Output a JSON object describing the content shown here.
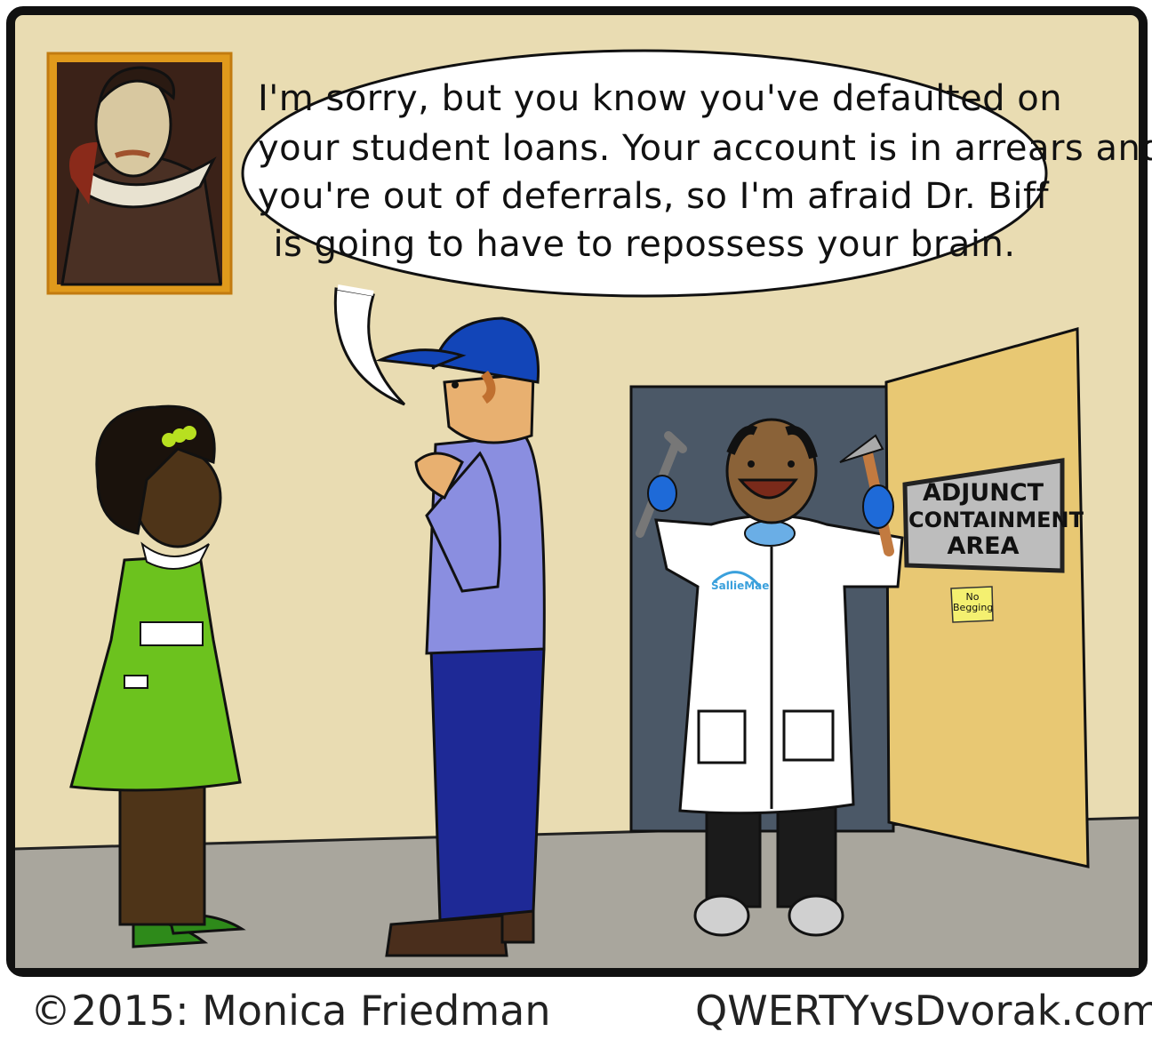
{
  "speech_bubble": {
    "lines": [
      "I'm sorry, but you know you've defaulted on",
      "your student loans. Your account is in arrears and",
      "you're out of deferrals, so I'm afraid Dr. Biff",
      "is going to have to repossess your brain."
    ]
  },
  "door_sign": {
    "lines": [
      "ADJUNCT",
      "CONTAINMENT",
      "AREA"
    ]
  },
  "sticky_note": {
    "lines": [
      "No",
      "Begging"
    ]
  },
  "coat_logo": "SallieMae",
  "footer": {
    "copyright": "©2015: Monica Friedman",
    "site": "QWERTYvsDvorak.com"
  },
  "colors": {
    "wall": "#e9dcb2",
    "floor": "#a9a69d",
    "door": "#e8c873",
    "doorway": "#4b5867",
    "frame": "#e09a1c",
    "dress": "#6cc21e",
    "shirt": "#8a8ee0",
    "pants": "#1e2996",
    "cap": "#1245b8",
    "glove": "#1e6ad8"
  }
}
